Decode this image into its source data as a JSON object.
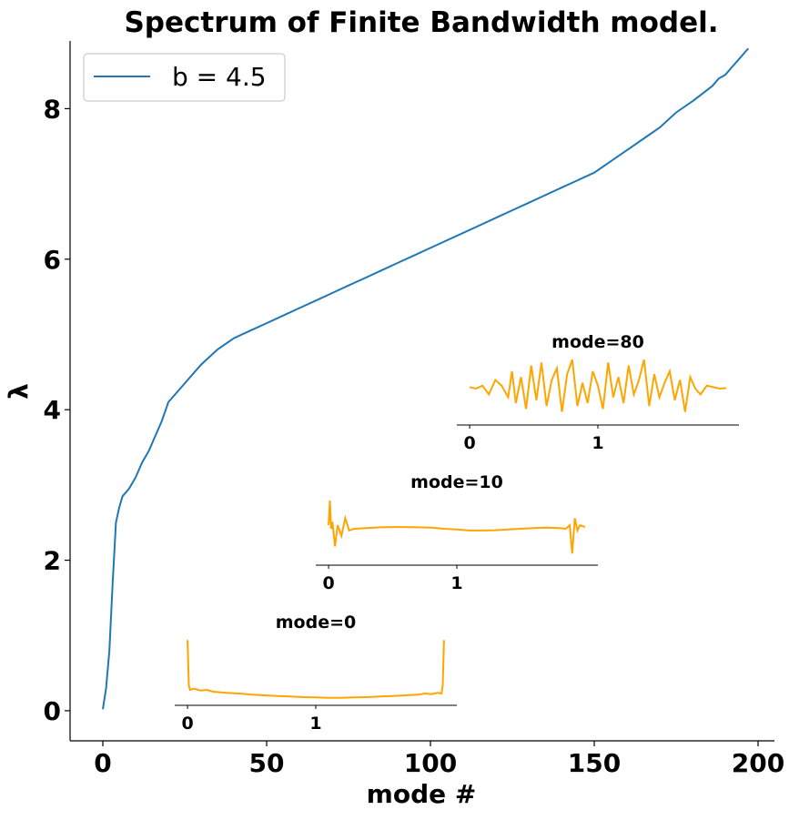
{
  "chart_data": {
    "type": "line",
    "title": "Spectrum of Finite Bandwidth model.",
    "xlabel": "mode #",
    "ylabel": "λ",
    "xlim": [
      -10,
      205
    ],
    "ylim": [
      -0.4,
      8.9
    ],
    "xticks": [
      0,
      50,
      100,
      150,
      200
    ],
    "yticks": [
      0,
      2,
      4,
      6,
      8
    ],
    "xtick_labels": [
      "0",
      "50",
      "100",
      "150",
      "200"
    ],
    "ytick_labels": [
      "0",
      "2",
      "4",
      "6",
      "8"
    ],
    "grid": false,
    "legend": {
      "position": "top-left",
      "entries": [
        "b = 4.5"
      ]
    },
    "series": [
      {
        "name": "b = 4.5",
        "color": "#1f77b4",
        "x": [
          0,
          1,
          2,
          3,
          4,
          5,
          6,
          8,
          10,
          12,
          14,
          16,
          18,
          20,
          22,
          24,
          26,
          28,
          30,
          35,
          40,
          45,
          50,
          55,
          60,
          65,
          70,
          75,
          80,
          85,
          90,
          95,
          100,
          105,
          110,
          115,
          120,
          125,
          130,
          135,
          140,
          145,
          150,
          155,
          160,
          165,
          170,
          175,
          180,
          183,
          186,
          188,
          190,
          192,
          194,
          196,
          197
        ],
        "y": [
          0.02,
          0.3,
          0.8,
          1.7,
          2.5,
          2.7,
          2.85,
          2.95,
          3.1,
          3.3,
          3.45,
          3.65,
          3.85,
          4.1,
          4.2,
          4.3,
          4.4,
          4.5,
          4.6,
          4.8,
          4.95,
          5.05,
          5.15,
          5.25,
          5.35,
          5.45,
          5.55,
          5.65,
          5.75,
          5.85,
          5.95,
          6.05,
          6.15,
          6.25,
          6.35,
          6.45,
          6.55,
          6.65,
          6.75,
          6.85,
          6.95,
          7.05,
          7.15,
          7.3,
          7.45,
          7.6,
          7.75,
          7.95,
          8.1,
          8.2,
          8.3,
          8.4,
          8.45,
          8.55,
          8.65,
          8.75,
          8.8
        ]
      }
    ],
    "insets": [
      {
        "title": "mode=0",
        "xtick_labels": [
          "0",
          "1"
        ],
        "xticks": [
          0,
          1
        ],
        "xlim": [
          -0.1,
          2.1
        ],
        "color": "#ffa500",
        "x": [
          0,
          0.01,
          0.02,
          0.05,
          0.1,
          0.15,
          0.2,
          0.3,
          0.4,
          0.5,
          0.6,
          0.7,
          0.8,
          0.9,
          1.0,
          1.1,
          1.2,
          1.3,
          1.4,
          1.5,
          1.6,
          1.7,
          1.8,
          1.85,
          1.9,
          1.95,
          1.98,
          1.99,
          2.0
        ],
        "y": [
          1.0,
          0.25,
          0.18,
          0.2,
          0.17,
          0.18,
          0.15,
          0.13,
          0.12,
          0.1,
          0.09,
          0.08,
          0.07,
          0.06,
          0.055,
          0.05,
          0.05,
          0.055,
          0.06,
          0.07,
          0.08,
          0.09,
          0.1,
          0.12,
          0.11,
          0.13,
          0.12,
          0.25,
          1.0
        ],
        "ylim": [
          0,
          1.05
        ]
      },
      {
        "title": "mode=10",
        "xtick_labels": [
          "0",
          "1"
        ],
        "xticks": [
          0,
          1
        ],
        "xlim": [
          -0.1,
          2.1
        ],
        "color": "#ffa500",
        "x": [
          0,
          0.01,
          0.02,
          0.03,
          0.05,
          0.07,
          0.1,
          0.13,
          0.16,
          0.2,
          0.3,
          0.4,
          0.5,
          0.6,
          0.7,
          0.8,
          0.9,
          1.0,
          1.1,
          1.2,
          1.3,
          1.4,
          1.5,
          1.6,
          1.7,
          1.8,
          1.85,
          1.88,
          1.9,
          1.92,
          1.94,
          1.96,
          2.0
        ],
        "y": [
          0.2,
          0.9,
          0.1,
          0.3,
          -0.4,
          0.2,
          -0.1,
          0.4,
          0.05,
          0.1,
          0.12,
          0.14,
          0.15,
          0.15,
          0.14,
          0.13,
          0.1,
          0.08,
          0.05,
          0.05,
          0.06,
          0.08,
          0.1,
          0.12,
          0.13,
          0.12,
          0.1,
          0.2,
          -0.6,
          0.4,
          0.05,
          0.2,
          0.15
        ],
        "ylim": [
          -0.8,
          1.0
        ]
      },
      {
        "title": "mode=80",
        "xtick_labels": [
          "0",
          "1"
        ],
        "xticks": [
          0,
          1
        ],
        "xlim": [
          -0.1,
          2.1
        ],
        "color": "#ffa500",
        "x": [
          0,
          0.05,
          0.1,
          0.15,
          0.2,
          0.25,
          0.3,
          0.33,
          0.36,
          0.4,
          0.44,
          0.48,
          0.52,
          0.56,
          0.6,
          0.64,
          0.68,
          0.72,
          0.76,
          0.8,
          0.84,
          0.88,
          0.92,
          0.96,
          1.0,
          1.04,
          1.08,
          1.12,
          1.16,
          1.2,
          1.24,
          1.28,
          1.32,
          1.36,
          1.4,
          1.44,
          1.48,
          1.52,
          1.56,
          1.6,
          1.64,
          1.68,
          1.72,
          1.76,
          1.8,
          1.85,
          1.9,
          1.95,
          2.0
        ],
        "y": [
          0.05,
          0.0,
          0.1,
          -0.2,
          0.3,
          0.1,
          -0.3,
          0.6,
          -0.5,
          0.4,
          -0.7,
          0.8,
          -0.4,
          0.9,
          -0.6,
          0.3,
          0.7,
          -0.8,
          0.5,
          1.0,
          -0.6,
          0.2,
          -0.5,
          0.6,
          0.1,
          -0.7,
          0.9,
          -0.3,
          0.4,
          -0.5,
          0.8,
          -0.2,
          0.3,
          1.0,
          -0.6,
          0.5,
          -0.3,
          0.2,
          0.6,
          -0.4,
          0.3,
          -0.8,
          0.4,
          0.0,
          -0.2,
          0.1,
          0.05,
          0.0,
          0.02
        ],
        "ylim": [
          -1.1,
          1.1
        ]
      }
    ]
  }
}
